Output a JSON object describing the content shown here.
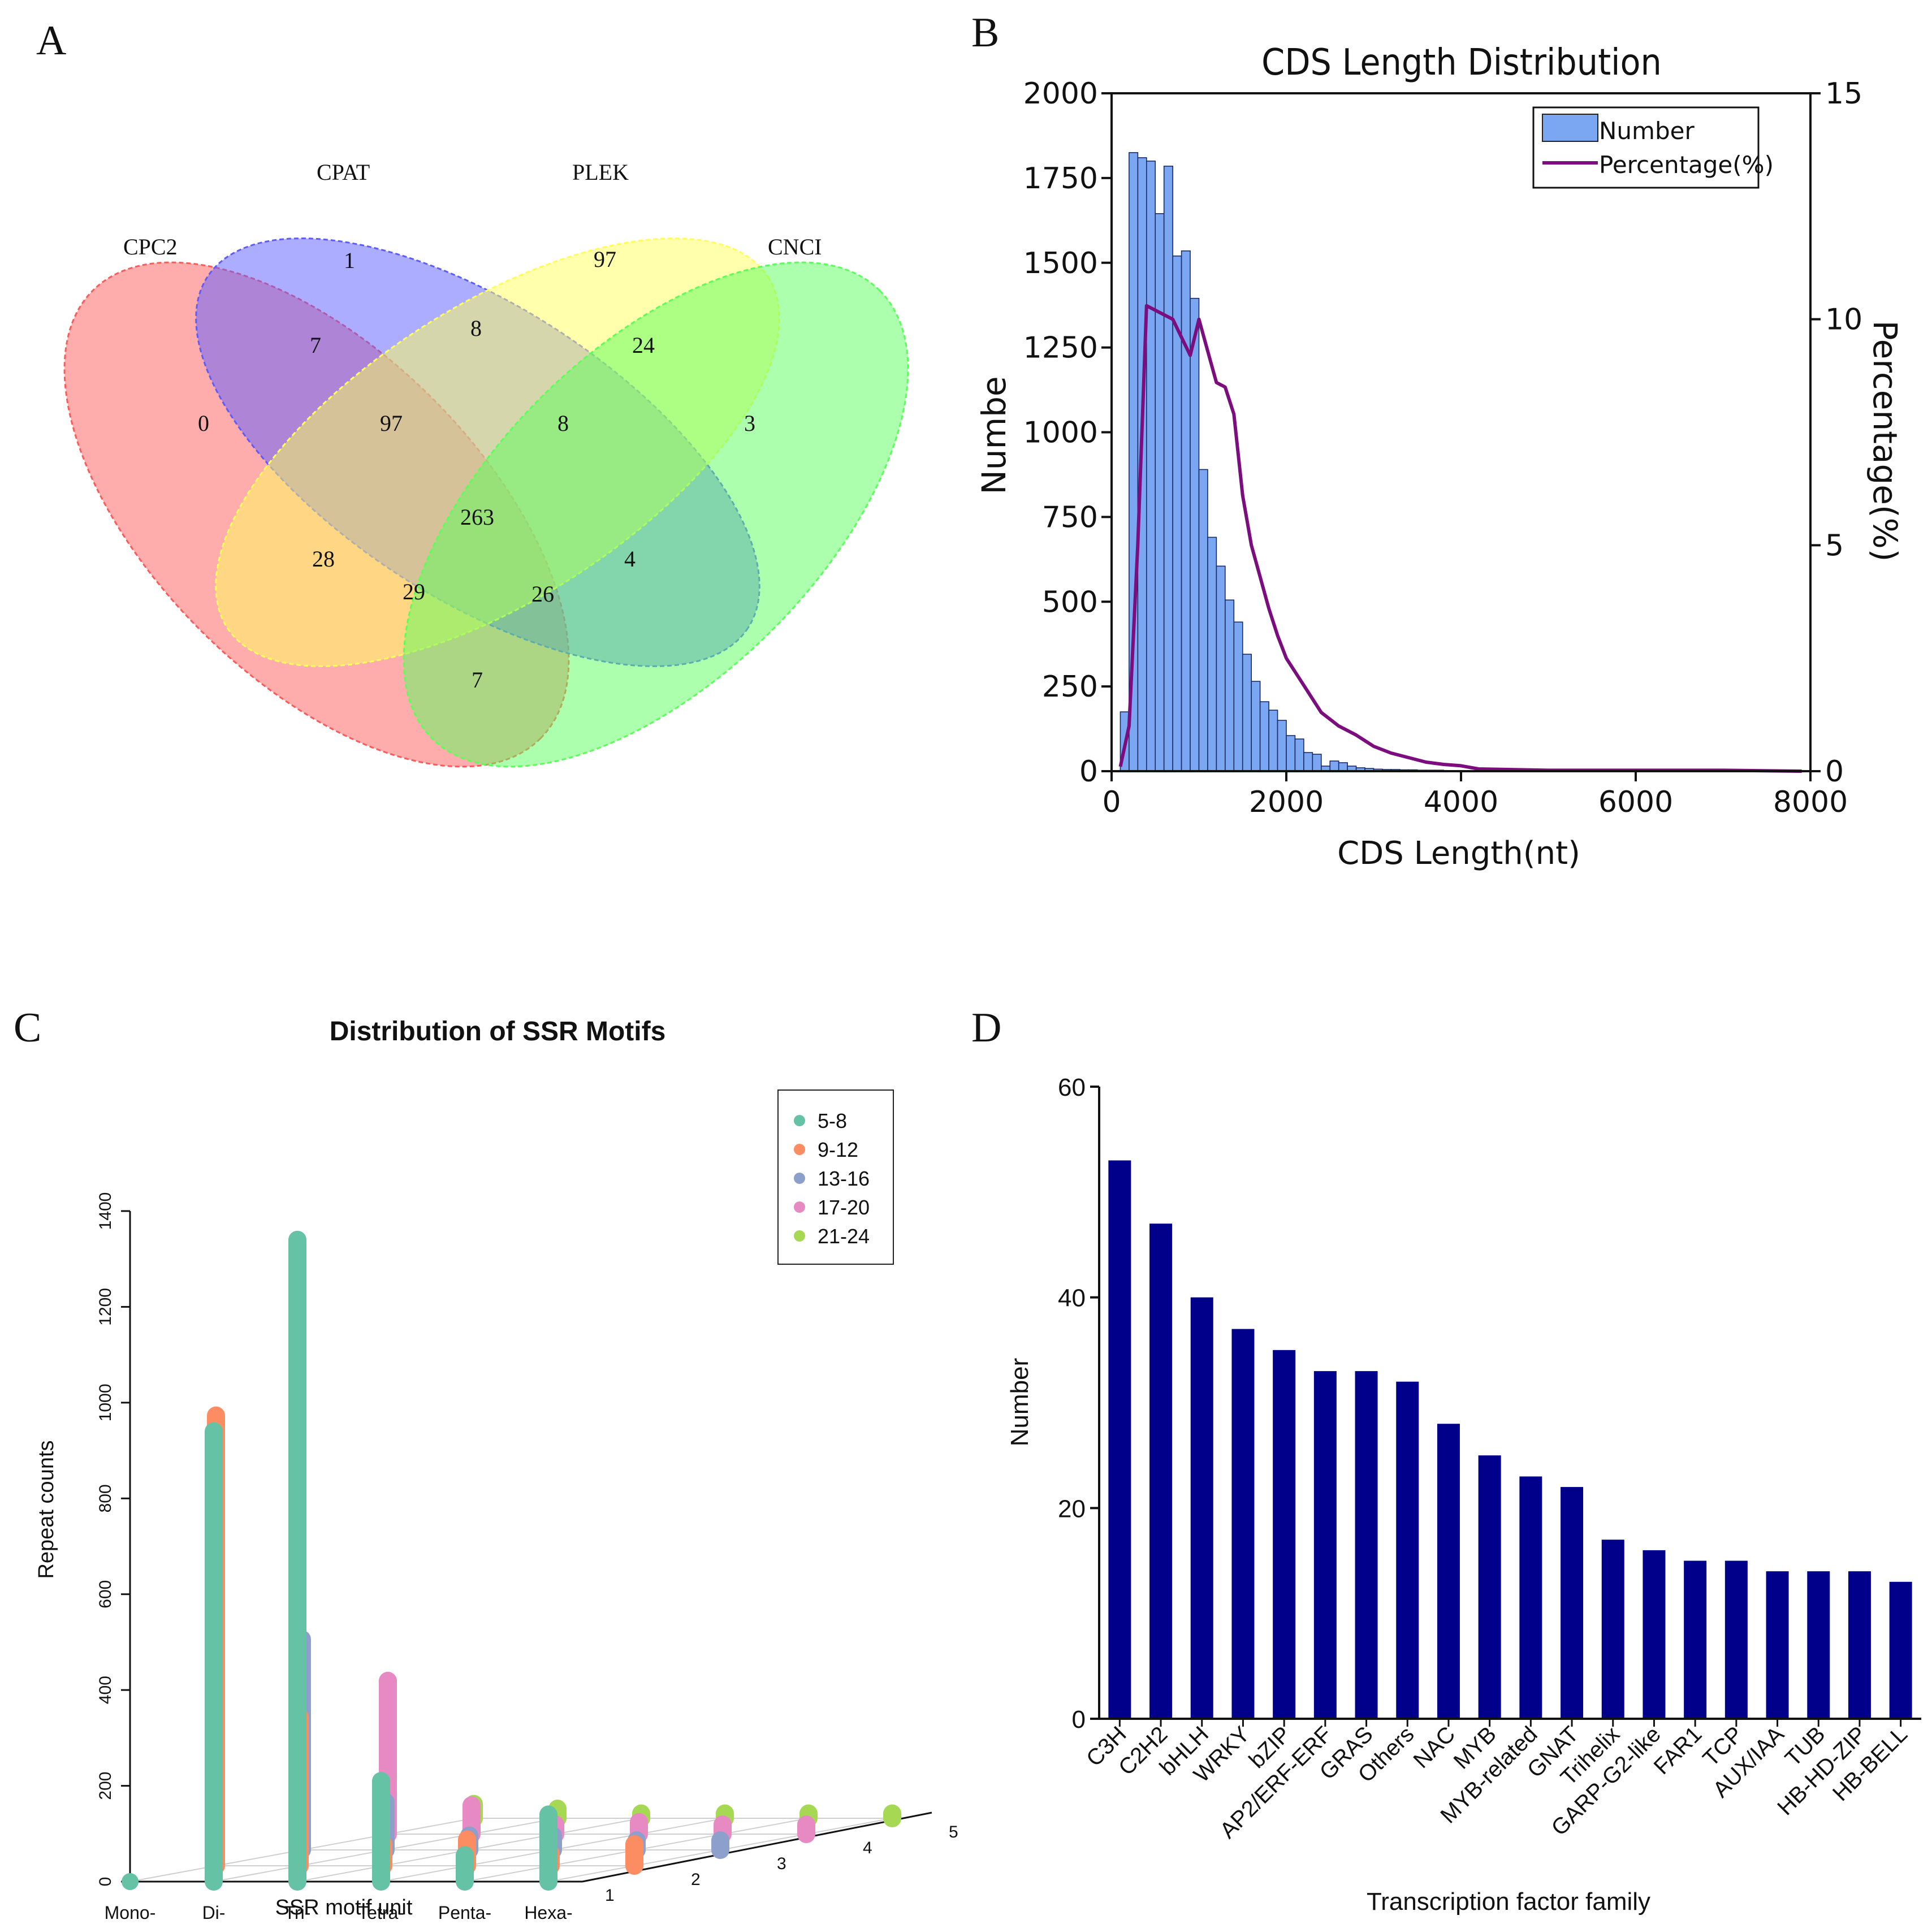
{
  "panels": {
    "a": "A",
    "b": "B",
    "c": "C",
    "d": "D"
  },
  "chart_data": [
    {
      "type": "venn",
      "panel": "A",
      "sets": [
        "CPC2",
        "CPAT",
        "PLEK",
        "CNCI"
      ],
      "colors": [
        "#ff5a5a",
        "#5c5cff",
        "#ffff5a",
        "#5aff5a"
      ],
      "regions": [
        {
          "sets": [
            "CPC2"
          ],
          "value": "0"
        },
        {
          "sets": [
            "CPAT"
          ],
          "value": "1"
        },
        {
          "sets": [
            "PLEK"
          ],
          "value": "97"
        },
        {
          "sets": [
            "CNCI"
          ],
          "value": "3"
        },
        {
          "sets": [
            "CPC2",
            "CPAT"
          ],
          "value": "7"
        },
        {
          "sets": [
            "CPAT",
            "PLEK"
          ],
          "value": "8"
        },
        {
          "sets": [
            "PLEK",
            "CNCI"
          ],
          "value": "24"
        },
        {
          "sets": [
            "CPC2",
            "CPAT",
            "PLEK"
          ],
          "value": "97"
        },
        {
          "sets": [
            "CPAT",
            "PLEK",
            "CNCI"
          ],
          "value": "8"
        },
        {
          "sets": [
            "CPC2",
            "CPAT",
            "PLEK",
            "CNCI"
          ],
          "value": "263"
        },
        {
          "sets": [
            "CPC2",
            "PLEK"
          ],
          "value": "28"
        },
        {
          "sets": [
            "CPAT",
            "CNCI"
          ],
          "value": "4"
        },
        {
          "sets": [
            "CPC2",
            "PLEK",
            "CNCI"
          ],
          "value": "29"
        },
        {
          "sets": [
            "CPC2",
            "CPAT",
            "CNCI"
          ],
          "value": "26"
        },
        {
          "sets": [
            "CPC2",
            "CNCI"
          ],
          "value": "7"
        }
      ]
    },
    {
      "type": "bar",
      "panel": "B",
      "title": "CDS Length Distribution",
      "xlabel": "CDS Length(nt)",
      "ylabel": "Numbe",
      "y2label": "Percentage(%)",
      "xlim": [
        0,
        8000
      ],
      "ylim": [
        0,
        2000
      ],
      "y2lim": [
        0,
        15
      ],
      "xticks": [
        "0",
        "2000",
        "4000",
        "6000",
        "8000"
      ],
      "yticks": [
        "0",
        "250",
        "500",
        "750",
        "1000",
        "1250",
        "1500",
        "1750",
        "2000"
      ],
      "y2ticks": [
        "0",
        "5",
        "10",
        "15"
      ],
      "legend": [
        "Number",
        "Percentage(%)"
      ],
      "bin_width": 100,
      "bin_start": 100,
      "series": [
        {
          "name": "Number",
          "color": "#7aa6f2",
          "values": [
            175,
            1825,
            1810,
            1800,
            1645,
            1785,
            1520,
            1535,
            1395,
            890,
            690,
            605,
            505,
            440,
            345,
            265,
            205,
            180,
            150,
            105,
            95,
            55,
            50,
            15,
            30,
            25,
            15,
            10,
            8,
            6,
            5,
            5,
            4,
            4,
            3,
            3,
            3,
            2,
            2,
            2,
            2,
            2,
            1,
            1,
            1,
            1,
            1,
            1,
            1,
            1,
            1,
            1,
            1,
            1,
            1,
            1,
            1,
            1,
            1,
            1,
            1,
            1,
            1,
            1,
            1,
            1,
            1,
            1,
            1,
            1,
            1,
            1,
            1,
            1,
            1,
            1,
            1,
            1
          ]
        },
        {
          "name": "Percentage(%)",
          "color": "#7b0d7f",
          "x": [
            100,
            200,
            300,
            400,
            500,
            600,
            700,
            800,
            900,
            1000,
            1100,
            1200,
            1300,
            1400,
            1500,
            1600,
            1700,
            1800,
            1900,
            2000,
            2200,
            2400,
            2600,
            2800,
            3000,
            3200,
            3400,
            3600,
            3800,
            4000,
            4200,
            5000,
            6000,
            7000,
            7900
          ],
          "values": [
            0.1,
            1.0,
            5.0,
            10.3,
            10.2,
            10.1,
            10.0,
            9.6,
            9.2,
            10.0,
            9.3,
            8.6,
            8.5,
            7.9,
            6.1,
            5.0,
            4.3,
            3.6,
            3.0,
            2.5,
            1.9,
            1.3,
            1.0,
            0.8,
            0.55,
            0.4,
            0.3,
            0.2,
            0.15,
            0.12,
            0.05,
            0.02,
            0.02,
            0.02,
            0.0
          ]
        }
      ]
    },
    {
      "type": "3d-lollipop",
      "panel": "C",
      "title": "Distribution of SSR Motifs",
      "xlabel": "SSR motif unit",
      "ylabel": "Repeat counts",
      "ylim": [
        0,
        1400
      ],
      "yticks": [
        "0",
        "200",
        "400",
        "600",
        "800",
        "1000",
        "1200",
        "1400"
      ],
      "categories": [
        "Mono-",
        "Di-",
        "Tri-",
        "Tetra-",
        "Penta-",
        "Hexa-"
      ],
      "depth_ticks": [
        "1",
        "2",
        "3",
        "4",
        "5"
      ],
      "legend_title": "",
      "series": [
        {
          "name": "5-8",
          "color": "#66c2a5",
          "values": [
            0,
            940,
            1340,
            210,
            55,
            140
          ]
        },
        {
          "name": "9-12",
          "color": "#fc8d62",
          "values": [
            940,
            310,
            45,
            55,
            25,
            45
          ]
        },
        {
          "name": "13-16",
          "color": "#8da0cb",
          "values": [
            440,
            100,
            30,
            30,
            20,
            20
          ]
        },
        {
          "name": "17-20",
          "color": "#e78ac3",
          "values": [
            320,
            60,
            20,
            25,
            20,
            20
          ]
        },
        {
          "name": "21-24",
          "color": "#a6d854",
          "values": [
            30,
            20,
            10,
            10,
            10,
            10
          ]
        }
      ]
    },
    {
      "type": "bar",
      "panel": "D",
      "title": "",
      "xlabel": "Transcription factor family",
      "ylabel": "Number",
      "ylim": [
        0,
        60
      ],
      "yticks": [
        "0",
        "20",
        "40",
        "60"
      ],
      "color": "#00008b",
      "categories": [
        "C3H",
        "C2H2",
        "bHLH",
        "WRKY",
        "bZIP",
        "AP2/ERF-ERF",
        "GRAS",
        "Others",
        "NAC",
        "MYB",
        "MYB-related",
        "GNAT",
        "Trihelix",
        "GARP-G2-like",
        "FAR1",
        "TCP",
        "AUX/IAA",
        "TUB",
        "HB-HD-ZIP",
        "HB-BELL"
      ],
      "values": [
        53,
        47,
        40,
        37,
        35,
        33,
        33,
        32,
        28,
        25,
        23,
        22,
        17,
        16,
        15,
        15,
        14,
        14,
        14,
        13
      ]
    }
  ]
}
